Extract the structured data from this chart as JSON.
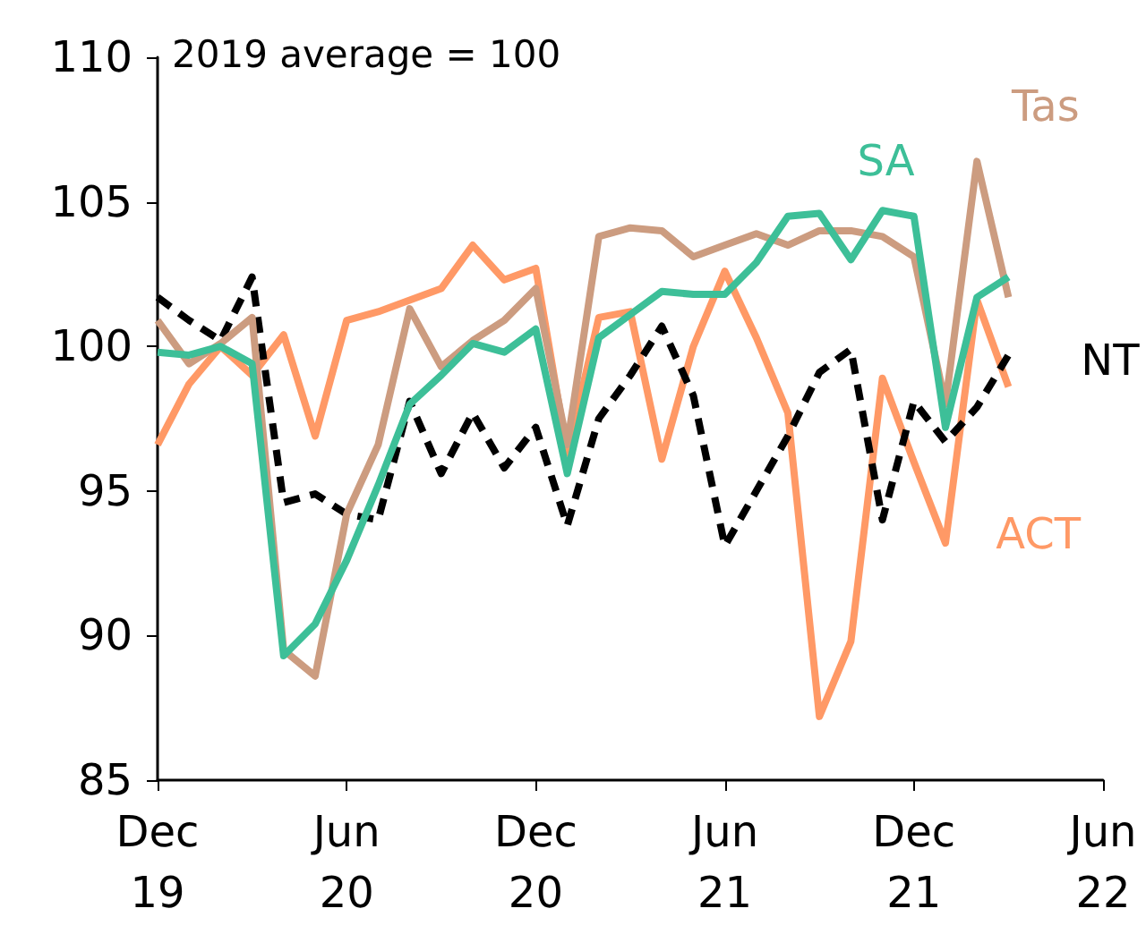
{
  "chart_data": {
    "type": "line",
    "x": [
      "2019-12",
      "2020-01",
      "2020-02",
      "2020-03",
      "2020-04",
      "2020-05",
      "2020-06",
      "2020-07",
      "2020-08",
      "2020-09",
      "2020-10",
      "2020-11",
      "2020-12",
      "2021-01",
      "2021-02",
      "2021-03",
      "2021-04",
      "2021-05",
      "2021-06",
      "2021-07",
      "2021-08",
      "2021-09",
      "2021-10",
      "2021-11",
      "2021-12",
      "2022-01",
      "2022-02",
      "2022-03"
    ],
    "series": [
      {
        "name": "SA",
        "color": "#3dbf98",
        "line_style": "solid",
        "values": [
          99.8,
          99.7,
          100.0,
          99.4,
          89.3,
          90.4,
          92.6,
          95.2,
          98.0,
          99.0,
          100.1,
          99.8,
          100.6,
          95.6,
          100.3,
          101.1,
          101.9,
          101.8,
          101.8,
          102.9,
          104.5,
          104.6,
          103.0,
          104.7,
          104.5,
          97.2,
          101.7,
          102.4
        ]
      },
      {
        "name": "Tas",
        "color": "#cc9c80",
        "line_style": "solid",
        "values": [
          100.9,
          99.4,
          100.1,
          101.0,
          89.5,
          88.6,
          94.2,
          96.6,
          101.3,
          99.3,
          100.2,
          100.9,
          102.0,
          96.6,
          103.8,
          104.1,
          104.0,
          103.1,
          103.5,
          103.9,
          103.5,
          104.0,
          104.0,
          103.8,
          103.1,
          98.0,
          106.4,
          101.7
        ]
      },
      {
        "name": "NT",
        "color": "#000000",
        "line_style": "dashed",
        "values": [
          101.7,
          100.9,
          100.2,
          102.4,
          94.6,
          94.9,
          94.2,
          94.0,
          98.1,
          95.6,
          97.7,
          95.8,
          97.2,
          93.8,
          97.5,
          99.0,
          100.7,
          98.3,
          93.1,
          95.0,
          96.9,
          99.1,
          99.9,
          94.0,
          98.1,
          96.7,
          97.9,
          99.7
        ]
      },
      {
        "name": "ACT",
        "color": "#ff9966",
        "line_style": "solid",
        "values": [
          96.6,
          98.7,
          100.0,
          99.0,
          100.4,
          96.9,
          100.9,
          101.2,
          101.6,
          102.0,
          103.5,
          102.3,
          102.7,
          96.3,
          101.0,
          101.2,
          96.1,
          100.0,
          102.6,
          100.3,
          97.7,
          87.2,
          89.8,
          98.9,
          96.0,
          93.2,
          101.6,
          98.6
        ]
      }
    ],
    "xlim": [
      "2019-12",
      "2022-06"
    ],
    "xticks": [
      {
        "value": "2019-12",
        "label": "Dec 19"
      },
      {
        "value": "2020-06",
        "label": "Jun 20"
      },
      {
        "value": "2020-12",
        "label": "Dec 20"
      },
      {
        "value": "2021-06",
        "label": "Jun 21"
      },
      {
        "value": "2021-12",
        "label": "Dec 21"
      },
      {
        "value": "2022-06",
        "label": "Jun 22"
      }
    ],
    "ylim": [
      85,
      110
    ],
    "yticks": [
      85,
      90,
      95,
      100,
      105,
      110
    ],
    "annotations": [
      "2019 average = 100"
    ],
    "grid": false,
    "legend": false,
    "marker": "none"
  }
}
